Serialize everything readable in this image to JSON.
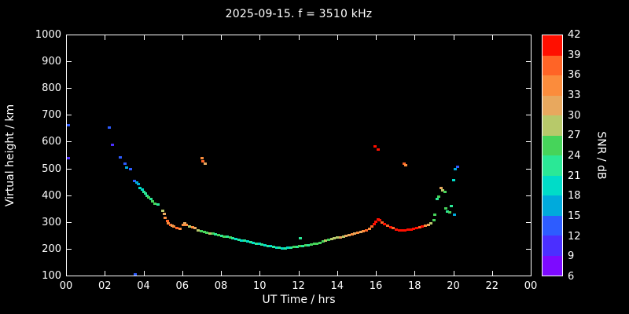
{
  "colors": {
    "background": "#000000",
    "foreground": "#ffffff"
  },
  "chart_data": {
    "type": "scatter",
    "title": "2025-09-15. f = 3510 kHz",
    "xlabel": "UT Time / hrs",
    "ylabel": "Virtual height / km",
    "xlim": [
      0,
      24
    ],
    "ylim": [
      100,
      1000
    ],
    "grid": false,
    "x_ticks": {
      "values": [
        0,
        2,
        4,
        6,
        8,
        10,
        12,
        14,
        16,
        18,
        20,
        22,
        24
      ],
      "labels": [
        "00",
        "02",
        "04",
        "06",
        "08",
        "10",
        "12",
        "14",
        "16",
        "18",
        "20",
        "22",
        "00"
      ]
    },
    "y_ticks": {
      "values": [
        100,
        200,
        300,
        400,
        500,
        600,
        700,
        800,
        900,
        1000
      ],
      "labels": [
        "100",
        "200",
        "300",
        "400",
        "500",
        "600",
        "700",
        "800",
        "900",
        "1000"
      ]
    },
    "point_format": [
      "ut_hours",
      "virtual_height_km",
      "snr_db"
    ],
    "points": [
      [
        0.1,
        665,
        12
      ],
      [
        0.1,
        540,
        9
      ],
      [
        2.2,
        655,
        12
      ],
      [
        2.35,
        590,
        9
      ],
      [
        2.75,
        545,
        12
      ],
      [
        3.0,
        520,
        12
      ],
      [
        3.1,
        505,
        15
      ],
      [
        3.3,
        500,
        12
      ],
      [
        3.5,
        455,
        12
      ],
      [
        3.6,
        450,
        15
      ],
      [
        3.55,
        105,
        12
      ],
      [
        3.7,
        445,
        15
      ],
      [
        3.8,
        430,
        18
      ],
      [
        3.9,
        425,
        18
      ],
      [
        4.0,
        415,
        21
      ],
      [
        4.05,
        408,
        21
      ],
      [
        4.15,
        400,
        21
      ],
      [
        4.25,
        395,
        24
      ],
      [
        4.35,
        388,
        21
      ],
      [
        4.45,
        380,
        24
      ],
      [
        4.55,
        372,
        24
      ],
      [
        4.7,
        368,
        21
      ],
      [
        4.95,
        345,
        27
      ],
      [
        5.05,
        332,
        30
      ],
      [
        5.1,
        318,
        33
      ],
      [
        5.2,
        305,
        36
      ],
      [
        5.25,
        298,
        33
      ],
      [
        5.35,
        292,
        36
      ],
      [
        5.45,
        288,
        30
      ],
      [
        5.55,
        284,
        33
      ],
      [
        5.7,
        280,
        36
      ],
      [
        5.85,
        276,
        33
      ],
      [
        6.0,
        292,
        33
      ],
      [
        6.1,
        296,
        30
      ],
      [
        6.2,
        290,
        33
      ],
      [
        6.35,
        286,
        27
      ],
      [
        6.5,
        282,
        33
      ],
      [
        6.65,
        278,
        30
      ],
      [
        6.8,
        272,
        27
      ],
      [
        7.0,
        540,
        33
      ],
      [
        7.05,
        528,
        36
      ],
      [
        7.15,
        522,
        30
      ],
      [
        6.95,
        268,
        24
      ],
      [
        7.1,
        265,
        24
      ],
      [
        7.25,
        262,
        24
      ],
      [
        7.4,
        260,
        27
      ],
      [
        7.55,
        258,
        24
      ],
      [
        7.7,
        255,
        21
      ],
      [
        7.85,
        252,
        24
      ],
      [
        8.0,
        250,
        21
      ],
      [
        8.15,
        248,
        24
      ],
      [
        8.3,
        246,
        21
      ],
      [
        8.45,
        243,
        24
      ],
      [
        8.6,
        241,
        21
      ],
      [
        8.75,
        238,
        18
      ],
      [
        8.9,
        236,
        21
      ],
      [
        9.05,
        233,
        18
      ],
      [
        9.2,
        231,
        21
      ],
      [
        9.35,
        229,
        18
      ],
      [
        9.5,
        227,
        21
      ],
      [
        9.65,
        224,
        18
      ],
      [
        9.8,
        222,
        21
      ],
      [
        9.95,
        220,
        18
      ],
      [
        10.1,
        217,
        21
      ],
      [
        10.25,
        215,
        18
      ],
      [
        10.4,
        213,
        21
      ],
      [
        10.55,
        211,
        18
      ],
      [
        10.7,
        209,
        21
      ],
      [
        10.85,
        207,
        18
      ],
      [
        11.0,
        205,
        21
      ],
      [
        11.15,
        204,
        18
      ],
      [
        11.3,
        204,
        21
      ],
      [
        11.45,
        205,
        18
      ],
      [
        11.6,
        207,
        21
      ],
      [
        11.75,
        208,
        24
      ],
      [
        11.9,
        210,
        21
      ],
      [
        12.05,
        211,
        24
      ],
      [
        12.1,
        240,
        21
      ],
      [
        12.2,
        213,
        21
      ],
      [
        12.35,
        214,
        24
      ],
      [
        12.5,
        216,
        21
      ],
      [
        12.65,
        218,
        24
      ],
      [
        12.8,
        220,
        24
      ],
      [
        12.95,
        222,
        24
      ],
      [
        13.1,
        225,
        24
      ],
      [
        13.25,
        228,
        24
      ],
      [
        13.4,
        231,
        27
      ],
      [
        13.55,
        234,
        24
      ],
      [
        13.7,
        237,
        27
      ],
      [
        13.85,
        240,
        27
      ],
      [
        14.0,
        243,
        27
      ],
      [
        14.15,
        245,
        30
      ],
      [
        14.3,
        248,
        27
      ],
      [
        14.45,
        251,
        30
      ],
      [
        14.6,
        254,
        30
      ],
      [
        14.75,
        256,
        33
      ],
      [
        14.9,
        259,
        30
      ],
      [
        15.05,
        262,
        33
      ],
      [
        15.2,
        265,
        30
      ],
      [
        15.35,
        268,
        33
      ],
      [
        15.5,
        272,
        36
      ],
      [
        15.65,
        277,
        33
      ],
      [
        15.8,
        286,
        36
      ],
      [
        15.9,
        295,
        39
      ],
      [
        15.95,
        585,
        42
      ],
      [
        16.1,
        575,
        39
      ],
      [
        16.0,
        302,
        39
      ],
      [
        16.1,
        312,
        42
      ],
      [
        16.2,
        308,
        39
      ],
      [
        16.3,
        300,
        36
      ],
      [
        16.45,
        293,
        39
      ],
      [
        16.6,
        287,
        36
      ],
      [
        16.75,
        282,
        39
      ],
      [
        16.9,
        278,
        36
      ],
      [
        17.05,
        275,
        42
      ],
      [
        17.2,
        272,
        39
      ],
      [
        17.35,
        270,
        42
      ],
      [
        17.5,
        271,
        39
      ],
      [
        17.65,
        273,
        42
      ],
      [
        17.8,
        275,
        39
      ],
      [
        17.95,
        277,
        42
      ],
      [
        18.1,
        280,
        39
      ],
      [
        18.25,
        283,
        36
      ],
      [
        18.4,
        286,
        39
      ],
      [
        18.55,
        289,
        33
      ],
      [
        18.7,
        292,
        30
      ],
      [
        18.85,
        298,
        27
      ],
      [
        17.45,
        520,
        36
      ],
      [
        17.55,
        515,
        33
      ],
      [
        19.0,
        308,
        24
      ],
      [
        19.05,
        330,
        24
      ],
      [
        19.15,
        388,
        21
      ],
      [
        19.25,
        398,
        24
      ],
      [
        19.35,
        428,
        30
      ],
      [
        19.45,
        422,
        27
      ],
      [
        19.55,
        415,
        24
      ],
      [
        19.6,
        352,
        24
      ],
      [
        19.7,
        342,
        21
      ],
      [
        19.8,
        338,
        24
      ],
      [
        19.9,
        362,
        21
      ],
      [
        20.0,
        460,
        18
      ],
      [
        20.05,
        330,
        15
      ],
      [
        20.1,
        500,
        15
      ],
      [
        20.2,
        510,
        12
      ]
    ]
  },
  "colorbar": {
    "title": "SNR / dB",
    "min": 6,
    "max": 42,
    "step": 3,
    "tick_labels": [
      "42",
      "39",
      "36",
      "33",
      "30",
      "27",
      "24",
      "21",
      "18",
      "15",
      "12",
      "9",
      "6"
    ],
    "segment_colors_bottom_to_top": [
      "#7d0aff",
      "#4b2fff",
      "#2d5cff",
      "#00aadc",
      "#00dcc8",
      "#2ae896",
      "#46d45a",
      "#b7c96a",
      "#e8a85e",
      "#fb8c3c",
      "#ff6426",
      "#ff0f00"
    ]
  }
}
